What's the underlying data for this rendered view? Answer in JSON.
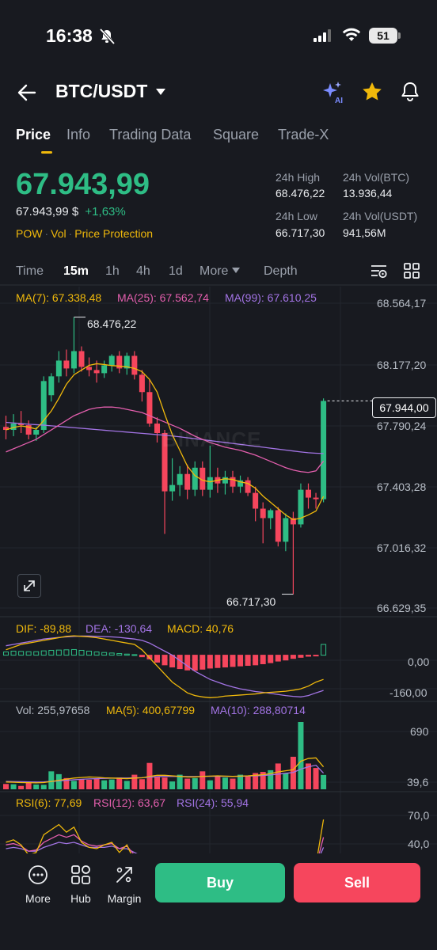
{
  "status": {
    "time": "16:38",
    "battery": "51"
  },
  "header": {
    "pair": "BTC/USDT"
  },
  "tabs": [
    "Price",
    "Info",
    "Trading Data",
    "Square",
    "Trade-X"
  ],
  "price": {
    "last": "67.943,99",
    "fiat": "67.943,99 $",
    "change": "+1,63%",
    "tags": [
      "POW",
      "Vol",
      "Price Protection"
    ]
  },
  "stats": {
    "high_label": "24h High",
    "high": "68.476,22",
    "low_label": "24h Low",
    "low": "66.717,30",
    "vol_btc_label": "24h Vol(BTC)",
    "vol_btc": "13.936,44",
    "vol_usdt_label": "24h Vol(USDT)",
    "vol_usdt": "941,56M"
  },
  "intervals": {
    "time": "Time",
    "m15": "15m",
    "h1": "1h",
    "h4": "4h",
    "d1": "1d",
    "more": "More",
    "depth": "Depth"
  },
  "ma_legend": {
    "ma7": "MA(7): 67.338,48",
    "ma25": "MA(25): 67.562,74",
    "ma99": "MA(99): 67.610,25"
  },
  "price_axis": [
    "68.564,17",
    "68.177,20",
    "67.790,24",
    "67.403,28",
    "67.016,32",
    "66.629,35"
  ],
  "current_price": "67.944,00",
  "high_callout": "68.476,22",
  "low_callout": "66.717,30",
  "watermark": "BINANCE",
  "macd_legend": {
    "dif": "DIF: -89,88",
    "dea": "DEA: -130,64",
    "macd": "MACD: 40,76"
  },
  "macd_axis": [
    "0,00",
    "-160,00"
  ],
  "vol_legend": {
    "vol": "Vol: 255,97658",
    "ma5": "MA(5): 400,67799",
    "ma10": "MA(10): 288,80714"
  },
  "vol_axis": [
    "690",
    "39,6"
  ],
  "rsi_legend": {
    "rsi6": "RSI(6): 77,69",
    "rsi12": "RSI(12): 63,67",
    "rsi24": "RSI(24): 55,94"
  },
  "rsi_axis": [
    "70,0",
    "40,0"
  ],
  "bottom": {
    "more": "More",
    "hub": "Hub",
    "margin": "Margin",
    "buy": "Buy",
    "sell": "Sell"
  },
  "colors": {
    "up": "#2ebd85",
    "down": "#f6465d",
    "accent": "#f0b90b",
    "ma7": "#f0b90b",
    "ma25": "#e45fae",
    "ma99": "#a374e5"
  },
  "chart_data": {
    "type": "candlestick",
    "interval": "15m",
    "candles": [
      [
        67779,
        67850,
        67700,
        67760
      ],
      [
        67760,
        67860,
        67720,
        67800
      ],
      [
        67800,
        67880,
        67740,
        67790
      ],
      [
        67790,
        67820,
        67700,
        67730
      ],
      [
        67730,
        67780,
        67690,
        67760
      ],
      [
        67760,
        68100,
        67740,
        68070
      ],
      [
        67980,
        68120,
        67940,
        68100
      ],
      [
        68100,
        68260,
        68060,
        68200
      ],
      [
        68200,
        68270,
        68100,
        68150
      ],
      [
        68150,
        68476,
        68120,
        68260
      ],
      [
        68260,
        68290,
        68130,
        68160
      ],
      [
        68160,
        68220,
        68100,
        68140
      ],
      [
        68140,
        68200,
        68060,
        68120
      ],
      [
        68120,
        68200,
        68090,
        68170
      ],
      [
        68170,
        68240,
        68130,
        68230
      ],
      [
        68230,
        68260,
        68120,
        68150
      ],
      [
        68150,
        68250,
        68110,
        68230
      ],
      [
        68230,
        68260,
        68080,
        68110
      ],
      [
        68110,
        68140,
        67940,
        68000
      ],
      [
        68000,
        68080,
        67780,
        67800
      ],
      [
        67800,
        67840,
        67680,
        67740
      ],
      [
        67740,
        67760,
        67100,
        67370
      ],
      [
        67370,
        67580,
        67310,
        67410
      ],
      [
        67410,
        67530,
        67340,
        67480
      ],
      [
        67480,
        67540,
        67320,
        67380
      ],
      [
        67380,
        67560,
        67340,
        67520
      ],
      [
        67520,
        67560,
        67340,
        67380
      ],
      [
        67380,
        67660,
        67330,
        67460
      ],
      [
        67460,
        67520,
        67360,
        67420
      ],
      [
        67420,
        67500,
        67350,
        67460
      ],
      [
        67460,
        67500,
        67360,
        67400
      ],
      [
        67400,
        67470,
        67360,
        67440
      ],
      [
        67440,
        67460,
        67340,
        67360
      ],
      [
        67360,
        67400,
        67180,
        67260
      ],
      [
        67260,
        67300,
        67040,
        67200
      ],
      [
        67200,
        67260,
        67130,
        67250
      ],
      [
        67250,
        67270,
        67020,
        67050
      ],
      [
        67050,
        67230,
        66990,
        67200
      ],
      [
        67200,
        67240,
        66717,
        67160
      ],
      [
        67160,
        67420,
        67140,
        67380
      ],
      [
        67380,
        67420,
        67260,
        67330
      ],
      [
        67330,
        67360,
        67260,
        67320
      ],
      [
        67320,
        67960,
        67300,
        67944
      ]
    ],
    "ma7": [
      67760,
      67775,
      67785,
      67778,
      67765,
      67820,
      67880,
      67960,
      68050,
      68110,
      68140,
      68170,
      68180,
      68175,
      68168,
      68165,
      68160,
      68150,
      68130,
      68080,
      68000,
      67860,
      67730,
      67630,
      67530,
      67470,
      67440,
      67430,
      67440,
      67450,
      67445,
      67430,
      67420,
      67390,
      67340,
      67300,
      67260,
      67220,
      67190,
      67200,
      67220,
      67245,
      67338
    ],
    "ma25": [
      67620,
      67640,
      67660,
      67680,
      67700,
      67730,
      67760,
      67790,
      67820,
      67850,
      67870,
      67890,
      67900,
      67905,
      67905,
      67900,
      67890,
      67880,
      67870,
      67850,
      67830,
      67810,
      67790,
      67770,
      67745,
      67720,
      67700,
      67680,
      67665,
      67650,
      67640,
      67630,
      67615,
      67600,
      67580,
      67560,
      67540,
      67520,
      67505,
      67495,
      67490,
      67500,
      67562
    ],
    "ma99": [
      67808,
      67804,
      67800,
      67796,
      67793,
      67790,
      67786,
      67782,
      67778,
      67774,
      67770,
      67766,
      67762,
      67758,
      67754,
      67750,
      67746,
      67742,
      67738,
      67734,
      67730,
      67726,
      67721,
      67716,
      67710,
      67704,
      67698,
      67692,
      67686,
      67680,
      67674,
      67668,
      67662,
      67656,
      67650,
      67644,
      67638,
      67632,
      67626,
      67620,
      67615,
      67612,
      67610
    ],
    "macd_hist": [
      12,
      15,
      14,
      13,
      13,
      16,
      18,
      19,
      20,
      21,
      18,
      15,
      12,
      10,
      8,
      6,
      4,
      2,
      -6,
      -14,
      -26,
      -36,
      -44,
      -50,
      -55,
      -56,
      -52,
      -48,
      -46,
      -44,
      -42,
      -40,
      -38,
      -36,
      -32,
      -28,
      -22,
      -18,
      -12,
      -8,
      -4,
      -2,
      40
    ],
    "dif": [
      20,
      30,
      40,
      45,
      50,
      55,
      60,
      65,
      70,
      72,
      70,
      68,
      65,
      60,
      55,
      50,
      45,
      40,
      20,
      -10,
      -40,
      -70,
      -100,
      -120,
      -140,
      -150,
      -155,
      -158,
      -156,
      -152,
      -150,
      -148,
      -146,
      -144,
      -140,
      -138,
      -136,
      -134,
      -130,
      -125,
      -115,
      -100,
      -90
    ],
    "dea": [
      35,
      40,
      45,
      50,
      55,
      60,
      63,
      66,
      68,
      70,
      71,
      71,
      70,
      69,
      68,
      66,
      63,
      60,
      55,
      45,
      30,
      15,
      0,
      -20,
      -40,
      -60,
      -75,
      -90,
      -100,
      -110,
      -118,
      -125,
      -130,
      -135,
      -138,
      -142,
      -146,
      -150,
      -153,
      -155,
      -150,
      -140,
      -131
    ],
    "volume": [
      95,
      90,
      60,
      120,
      85,
      80,
      320,
      270,
      200,
      150,
      180,
      170,
      190,
      160,
      175,
      210,
      150,
      260,
      180,
      470,
      230,
      210,
      140,
      260,
      190,
      200,
      320,
      160,
      230,
      210,
      190,
      260,
      240,
      290,
      310,
      340,
      460,
      290,
      580,
      1200,
      460,
      380,
      256
    ],
    "vol_ma5": [
      130,
      125,
      120,
      118,
      115,
      120,
      140,
      160,
      180,
      200,
      210,
      220,
      215,
      205,
      200,
      195,
      190,
      200,
      205,
      230,
      250,
      250,
      240,
      230,
      220,
      220,
      230,
      235,
      240,
      235,
      230,
      235,
      240,
      250,
      260,
      280,
      310,
      330,
      350,
      500,
      550,
      560,
      400
    ],
    "vol_ma10": [
      140,
      138,
      135,
      132,
      130,
      132,
      140,
      150,
      160,
      170,
      178,
      185,
      190,
      195,
      198,
      200,
      200,
      205,
      208,
      215,
      225,
      230,
      232,
      230,
      228,
      228,
      230,
      232,
      234,
      232,
      230,
      232,
      236,
      240,
      246,
      256,
      270,
      285,
      300,
      360,
      400,
      430,
      289
    ],
    "rsi6": [
      60,
      62,
      58,
      50,
      52,
      66,
      70,
      74,
      68,
      72,
      60,
      56,
      55,
      58,
      60,
      52,
      58,
      45,
      38,
      30,
      28,
      20,
      30,
      34,
      28,
      36,
      30,
      36,
      32,
      34,
      30,
      34,
      28,
      24,
      20,
      24,
      18,
      30,
      28,
      42,
      40,
      42,
      78
    ],
    "rsi12": [
      58,
      59,
      57,
      53,
      54,
      60,
      63,
      66,
      64,
      66,
      61,
      58,
      57,
      58,
      59,
      55,
      57,
      50,
      45,
      40,
      38,
      32,
      36,
      38,
      34,
      38,
      35,
      38,
      36,
      37,
      35,
      36,
      33,
      30,
      28,
      30,
      27,
      32,
      31,
      40,
      39,
      41,
      64
    ],
    "rsi24": [
      55,
      56,
      55,
      53,
      53,
      56,
      58,
      60,
      59,
      60,
      58,
      56,
      56,
      56,
      57,
      55,
      55,
      52,
      49,
      46,
      44,
      40,
      42,
      42,
      40,
      42,
      40,
      41,
      40,
      40,
      39,
      40,
      38,
      36,
      35,
      36,
      34,
      36,
      36,
      41,
      41,
      42,
      56
    ],
    "price_range": [
      66629.35,
      68564.17
    ],
    "macd_range": [
      -160,
      40
    ],
    "vol_range": [
      0,
      1200
    ],
    "rsi_range": [
      0,
      100
    ]
  }
}
